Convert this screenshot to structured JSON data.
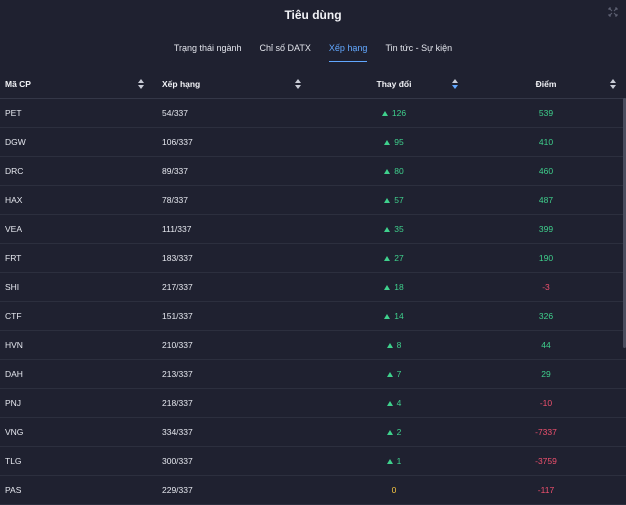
{
  "header": {
    "title": "Tiêu dùng",
    "expand_icon": "collapse-arrows-icon"
  },
  "tabs": [
    {
      "label": "Trạng thái ngành",
      "active": false
    },
    {
      "label": "Chỉ số DATX",
      "active": false
    },
    {
      "label": "Xếp hạng",
      "active": true
    },
    {
      "label": "Tin tức - Sự kiện",
      "active": false
    }
  ],
  "table": {
    "columns": {
      "code": "Mã CP",
      "rank": "Xếp hạng",
      "change": "Thay đổi",
      "points": "Điểm"
    },
    "rows": [
      {
        "code": "PET",
        "rank": "54/337",
        "change": "126",
        "points": "539"
      },
      {
        "code": "DGW",
        "rank": "106/337",
        "change": "95",
        "points": "410"
      },
      {
        "code": "DRC",
        "rank": "89/337",
        "change": "80",
        "points": "460"
      },
      {
        "code": "HAX",
        "rank": "78/337",
        "change": "57",
        "points": "487"
      },
      {
        "code": "VEA",
        "rank": "111/337",
        "change": "35",
        "points": "399"
      },
      {
        "code": "FRT",
        "rank": "183/337",
        "change": "27",
        "points": "190"
      },
      {
        "code": "SHI",
        "rank": "217/337",
        "change": "18",
        "points": "-3"
      },
      {
        "code": "CTF",
        "rank": "151/337",
        "change": "14",
        "points": "326"
      },
      {
        "code": "HVN",
        "rank": "210/337",
        "change": "8",
        "points": "44"
      },
      {
        "code": "DAH",
        "rank": "213/337",
        "change": "7",
        "points": "29"
      },
      {
        "code": "PNJ",
        "rank": "218/337",
        "change": "4",
        "points": "-10"
      },
      {
        "code": "VNG",
        "rank": "334/337",
        "change": "2",
        "points": "-7337"
      },
      {
        "code": "TLG",
        "rank": "300/337",
        "change": "1",
        "points": "-3759"
      },
      {
        "code": "PAS",
        "rank": "229/337",
        "change": "0",
        "points": "-117"
      }
    ]
  },
  "colors": {
    "background": "#1f2130",
    "accent": "#62a8ff",
    "positive": "#3fd18d",
    "negative": "#f0506e",
    "neutral": "#f5c542"
  }
}
